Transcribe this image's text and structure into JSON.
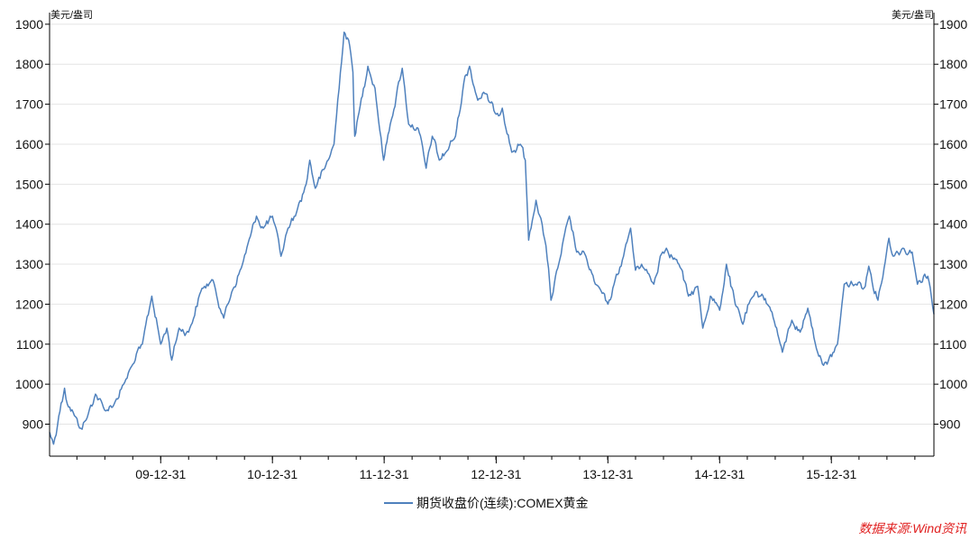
{
  "chart_data": {
    "type": "line",
    "title": "",
    "xlabel": "",
    "ylabel_left": "美元/盎司",
    "ylabel_right": "美元/盎司",
    "ylim": [
      820,
      1920
    ],
    "yticks": [
      900,
      1000,
      1100,
      1200,
      1300,
      1400,
      1500,
      1600,
      1700,
      1800,
      1900
    ],
    "xlim": [
      "2009-01-02",
      "2016-11-30"
    ],
    "xticks": [
      {
        "date": "2009-12-31",
        "label": "09-12-31"
      },
      {
        "date": "2010-12-31",
        "label": "10-12-31"
      },
      {
        "date": "2011-12-31",
        "label": "11-12-31"
      },
      {
        "date": "2012-12-31",
        "label": "12-12-31"
      },
      {
        "date": "2013-12-31",
        "label": "13-12-31"
      },
      {
        "date": "2014-12-31",
        "label": "14-12-31"
      },
      {
        "date": "2015-12-31",
        "label": "15-12-31"
      }
    ],
    "grid": true,
    "legend_position": "bottom-center",
    "series": [
      {
        "name": "期货收盘价(连续):COMEX黄金",
        "color": "#4f81bd",
        "points": [
          [
            "2009-01-02",
            880
          ],
          [
            "2009-01-15",
            850
          ],
          [
            "2009-02-01",
            920
          ],
          [
            "2009-02-20",
            990
          ],
          [
            "2009-03-01",
            950
          ],
          [
            "2009-03-20",
            930
          ],
          [
            "2009-04-10",
            890
          ],
          [
            "2009-05-01",
            910
          ],
          [
            "2009-06-01",
            975
          ],
          [
            "2009-07-01",
            935
          ],
          [
            "2009-08-01",
            950
          ],
          [
            "2009-09-01",
            1000
          ],
          [
            "2009-10-01",
            1050
          ],
          [
            "2009-11-01",
            1100
          ],
          [
            "2009-12-02",
            1220
          ],
          [
            "2009-12-31",
            1100
          ],
          [
            "2010-01-20",
            1140
          ],
          [
            "2010-02-05",
            1060
          ],
          [
            "2010-03-01",
            1140
          ],
          [
            "2010-04-01",
            1130
          ],
          [
            "2010-05-15",
            1240
          ],
          [
            "2010-06-20",
            1260
          ],
          [
            "2010-07-25",
            1165
          ],
          [
            "2010-08-20",
            1230
          ],
          [
            "2010-09-20",
            1290
          ],
          [
            "2010-10-20",
            1370
          ],
          [
            "2010-11-09",
            1420
          ],
          [
            "2010-12-01",
            1390
          ],
          [
            "2010-12-31",
            1420
          ],
          [
            "2011-01-28",
            1320
          ],
          [
            "2011-02-20",
            1390
          ],
          [
            "2011-03-20",
            1430
          ],
          [
            "2011-04-20",
            1500
          ],
          [
            "2011-05-02",
            1560
          ],
          [
            "2011-05-20",
            1490
          ],
          [
            "2011-06-20",
            1540
          ],
          [
            "2011-07-20",
            1600
          ],
          [
            "2011-08-10",
            1780
          ],
          [
            "2011-08-22",
            1880
          ],
          [
            "2011-09-06",
            1860
          ],
          [
            "2011-09-20",
            1780
          ],
          [
            "2011-09-26",
            1620
          ],
          [
            "2011-10-10",
            1680
          ],
          [
            "2011-11-08",
            1795
          ],
          [
            "2011-12-01",
            1740
          ],
          [
            "2011-12-29",
            1560
          ],
          [
            "2012-01-20",
            1650
          ],
          [
            "2012-02-28",
            1790
          ],
          [
            "2012-03-20",
            1650
          ],
          [
            "2012-04-20",
            1640
          ],
          [
            "2012-05-16",
            1540
          ],
          [
            "2012-06-05",
            1620
          ],
          [
            "2012-06-28",
            1560
          ],
          [
            "2012-07-20",
            1580
          ],
          [
            "2012-08-20",
            1620
          ],
          [
            "2012-09-20",
            1770
          ],
          [
            "2012-10-05",
            1795
          ],
          [
            "2012-11-01",
            1710
          ],
          [
            "2012-11-20",
            1730
          ],
          [
            "2012-12-31",
            1675
          ],
          [
            "2013-01-20",
            1690
          ],
          [
            "2013-02-20",
            1580
          ],
          [
            "2013-03-20",
            1600
          ],
          [
            "2013-04-05",
            1560
          ],
          [
            "2013-04-16",
            1360
          ],
          [
            "2013-05-10",
            1460
          ],
          [
            "2013-05-30",
            1400
          ],
          [
            "2013-06-20",
            1290
          ],
          [
            "2013-06-28",
            1210
          ],
          [
            "2013-07-20",
            1290
          ],
          [
            "2013-08-27",
            1420
          ],
          [
            "2013-09-20",
            1330
          ],
          [
            "2013-10-20",
            1320
          ],
          [
            "2013-11-20",
            1250
          ],
          [
            "2013-12-31",
            1200
          ],
          [
            "2014-01-20",
            1250
          ],
          [
            "2014-02-20",
            1320
          ],
          [
            "2014-03-15",
            1390
          ],
          [
            "2014-03-31",
            1285
          ],
          [
            "2014-04-20",
            1300
          ],
          [
            "2014-05-30",
            1250
          ],
          [
            "2014-06-20",
            1320
          ],
          [
            "2014-07-10",
            1340
          ],
          [
            "2014-08-20",
            1300
          ],
          [
            "2014-09-20",
            1220
          ],
          [
            "2014-10-20",
            1245
          ],
          [
            "2014-11-06",
            1140
          ],
          [
            "2014-12-01",
            1220
          ],
          [
            "2014-12-31",
            1185
          ],
          [
            "2015-01-22",
            1300
          ],
          [
            "2015-02-20",
            1200
          ],
          [
            "2015-03-17",
            1150
          ],
          [
            "2015-04-10",
            1210
          ],
          [
            "2015-05-18",
            1225
          ],
          [
            "2015-06-20",
            1180
          ],
          [
            "2015-07-24",
            1080
          ],
          [
            "2015-08-24",
            1160
          ],
          [
            "2015-09-20",
            1130
          ],
          [
            "2015-10-15",
            1190
          ],
          [
            "2015-11-20",
            1070
          ],
          [
            "2015-12-17",
            1050
          ],
          [
            "2016-01-20",
            1100
          ],
          [
            "2016-02-11",
            1250
          ],
          [
            "2016-03-20",
            1250
          ],
          [
            "2016-04-20",
            1245
          ],
          [
            "2016-05-01",
            1295
          ],
          [
            "2016-05-31",
            1210
          ],
          [
            "2016-06-20",
            1290
          ],
          [
            "2016-07-06",
            1365
          ],
          [
            "2016-07-20",
            1320
          ],
          [
            "2016-08-20",
            1340
          ],
          [
            "2016-09-20",
            1330
          ],
          [
            "2016-10-07",
            1250
          ],
          [
            "2016-10-31",
            1275
          ],
          [
            "2016-11-10",
            1270
          ],
          [
            "2016-11-30",
            1175
          ]
        ]
      }
    ]
  },
  "source_note": "数据来源:Wind资讯"
}
